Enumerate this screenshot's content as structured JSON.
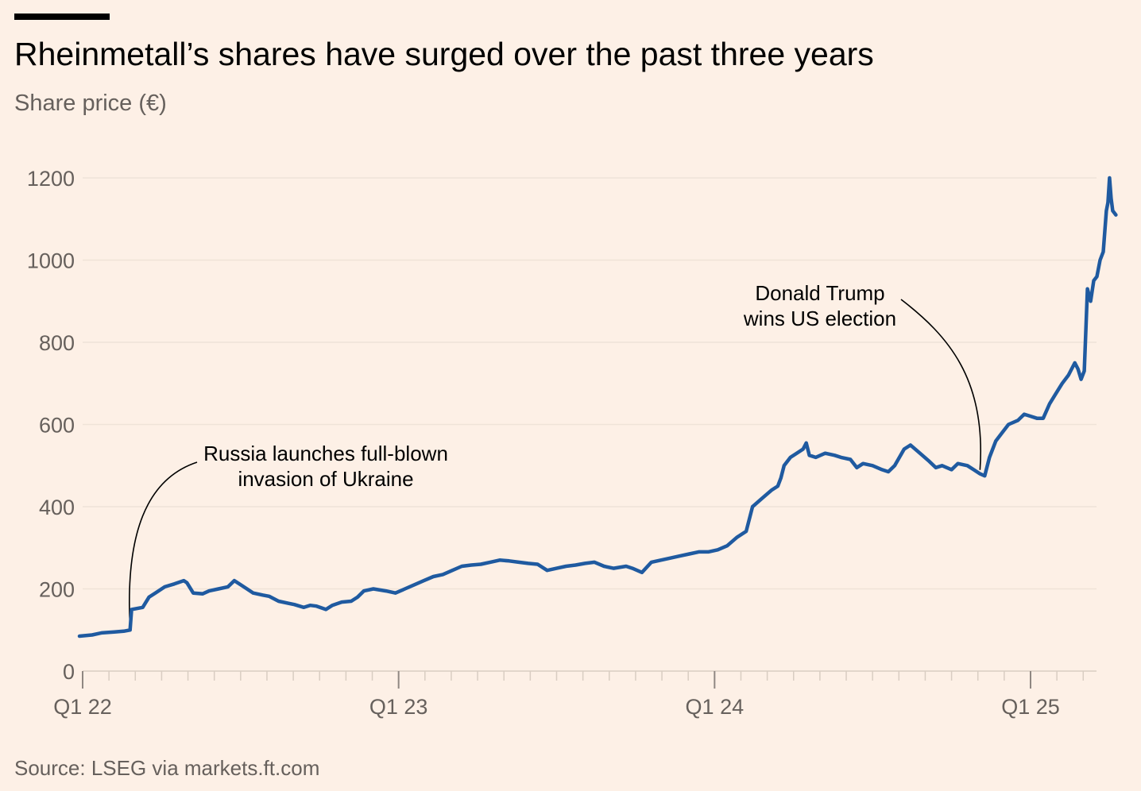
{
  "header": {
    "title": "Rheinmetall’s shares have surged over the past three years",
    "subtitle": "Share price (€)"
  },
  "footer": {
    "source": "Source: LSEG via markets.ft.com"
  },
  "colors": {
    "background": "#fdf0e6",
    "line": "#1f5aa0",
    "grid": "#efe3d8",
    "axis": "#d9cdc2",
    "muted_text": "#66605c",
    "title_text": "#000000"
  },
  "chart_data": {
    "type": "line",
    "title": "Rheinmetall’s shares have surged over the past three years",
    "subtitle": "Share price (€)",
    "xlabel": "",
    "ylabel": "",
    "ylim": [
      0,
      1200
    ],
    "yticks": [
      0,
      200,
      400,
      600,
      800,
      1000,
      1200
    ],
    "grid": true,
    "x_tick_labels": [
      {
        "label": "Q1 22",
        "t": 2022.0
      },
      {
        "label": "Q1 23",
        "t": 2023.0
      },
      {
        "label": "Q1 24",
        "t": 2024.0
      },
      {
        "label": "Q1 25",
        "t": 2025.0
      }
    ],
    "series": [
      {
        "name": "",
        "points": [
          [
            2021.99,
            85
          ],
          [
            2022.03,
            88
          ],
          [
            2022.06,
            93
          ],
          [
            2022.1,
            95
          ],
          [
            2022.13,
            97
          ],
          [
            2022.15,
            100
          ],
          [
            2022.155,
            150
          ],
          [
            2022.19,
            155
          ],
          [
            2022.21,
            180
          ],
          [
            2022.23,
            190
          ],
          [
            2022.26,
            205
          ],
          [
            2022.29,
            212
          ],
          [
            2022.32,
            220
          ],
          [
            2022.33,
            215
          ],
          [
            2022.35,
            190
          ],
          [
            2022.38,
            188
          ],
          [
            2022.4,
            195
          ],
          [
            2022.43,
            200
          ],
          [
            2022.46,
            205
          ],
          [
            2022.48,
            220
          ],
          [
            2022.5,
            210
          ],
          [
            2022.52,
            200
          ],
          [
            2022.54,
            190
          ],
          [
            2022.57,
            185
          ],
          [
            2022.59,
            182
          ],
          [
            2022.62,
            170
          ],
          [
            2022.65,
            165
          ],
          [
            2022.67,
            162
          ],
          [
            2022.7,
            155
          ],
          [
            2022.72,
            160
          ],
          [
            2022.74,
            158
          ],
          [
            2022.77,
            150
          ],
          [
            2022.79,
            160
          ],
          [
            2022.82,
            168
          ],
          [
            2022.85,
            170
          ],
          [
            2022.87,
            180
          ],
          [
            2022.89,
            195
          ],
          [
            2022.92,
            200
          ],
          [
            2022.96,
            195
          ],
          [
            2022.99,
            190
          ],
          [
            2023.02,
            200
          ],
          [
            2023.05,
            210
          ],
          [
            2023.08,
            220
          ],
          [
            2023.11,
            230
          ],
          [
            2023.14,
            235
          ],
          [
            2023.17,
            245
          ],
          [
            2023.2,
            255
          ],
          [
            2023.23,
            258
          ],
          [
            2023.26,
            260
          ],
          [
            2023.29,
            265
          ],
          [
            2023.32,
            270
          ],
          [
            2023.35,
            268
          ],
          [
            2023.38,
            265
          ],
          [
            2023.41,
            262
          ],
          [
            2023.44,
            260
          ],
          [
            2023.47,
            245
          ],
          [
            2023.5,
            250
          ],
          [
            2023.53,
            255
          ],
          [
            2023.56,
            258
          ],
          [
            2023.59,
            262
          ],
          [
            2023.62,
            265
          ],
          [
            2023.65,
            255
          ],
          [
            2023.68,
            250
          ],
          [
            2023.72,
            255
          ],
          [
            2023.74,
            250
          ],
          [
            2023.77,
            240
          ],
          [
            2023.8,
            265
          ],
          [
            2023.83,
            270
          ],
          [
            2023.86,
            275
          ],
          [
            2023.89,
            280
          ],
          [
            2023.92,
            285
          ],
          [
            2023.95,
            290
          ],
          [
            2023.98,
            290
          ],
          [
            2024.01,
            295
          ],
          [
            2024.04,
            305
          ],
          [
            2024.07,
            325
          ],
          [
            2024.1,
            340
          ],
          [
            2024.12,
            400
          ],
          [
            2024.15,
            420
          ],
          [
            2024.18,
            440
          ],
          [
            2024.2,
            450
          ],
          [
            2024.21,
            470
          ],
          [
            2024.22,
            500
          ],
          [
            2024.24,
            520
          ],
          [
            2024.26,
            530
          ],
          [
            2024.28,
            540
          ],
          [
            2024.29,
            555
          ],
          [
            2024.3,
            525
          ],
          [
            2024.32,
            520
          ],
          [
            2024.35,
            530
          ],
          [
            2024.38,
            525
          ],
          [
            2024.4,
            520
          ],
          [
            2024.43,
            515
          ],
          [
            2024.45,
            495
          ],
          [
            2024.47,
            505
          ],
          [
            2024.5,
            500
          ],
          [
            2024.53,
            490
          ],
          [
            2024.55,
            485
          ],
          [
            2024.57,
            500
          ],
          [
            2024.6,
            540
          ],
          [
            2024.62,
            550
          ],
          [
            2024.65,
            530
          ],
          [
            2024.68,
            510
          ],
          [
            2024.7,
            495
          ],
          [
            2024.72,
            500
          ],
          [
            2024.75,
            490
          ],
          [
            2024.77,
            505
          ],
          [
            2024.8,
            500
          ],
          [
            2024.82,
            490
          ],
          [
            2024.84,
            480
          ],
          [
            2024.855,
            475
          ],
          [
            2024.87,
            520
          ],
          [
            2024.89,
            560
          ],
          [
            2024.91,
            580
          ],
          [
            2024.93,
            600
          ],
          [
            2024.96,
            610
          ],
          [
            2024.98,
            625
          ],
          [
            2025.0,
            620
          ],
          [
            2025.02,
            615
          ],
          [
            2025.04,
            615
          ],
          [
            2025.06,
            650
          ],
          [
            2025.08,
            675
          ],
          [
            2025.1,
            700
          ],
          [
            2025.12,
            720
          ],
          [
            2025.14,
            750
          ],
          [
            2025.15,
            735
          ],
          [
            2025.16,
            710
          ],
          [
            2025.17,
            730
          ],
          [
            2025.18,
            930
          ],
          [
            2025.19,
            900
          ],
          [
            2025.2,
            950
          ],
          [
            2025.21,
            960
          ],
          [
            2025.22,
            1000
          ],
          [
            2025.23,
            1020
          ],
          [
            2025.24,
            1120
          ],
          [
            2025.245,
            1140
          ],
          [
            2025.25,
            1200
          ],
          [
            2025.255,
            1150
          ],
          [
            2025.26,
            1120
          ],
          [
            2025.27,
            1110
          ]
        ]
      }
    ],
    "annotations": [
      {
        "text_lines": [
          "Russia launches full-blown",
          "invasion of Ukraine"
        ],
        "t": 2022.15,
        "value": 100
      },
      {
        "text_lines": [
          "Donald Trump",
          "wins US election"
        ],
        "t": 2024.84,
        "value": 478
      }
    ]
  }
}
